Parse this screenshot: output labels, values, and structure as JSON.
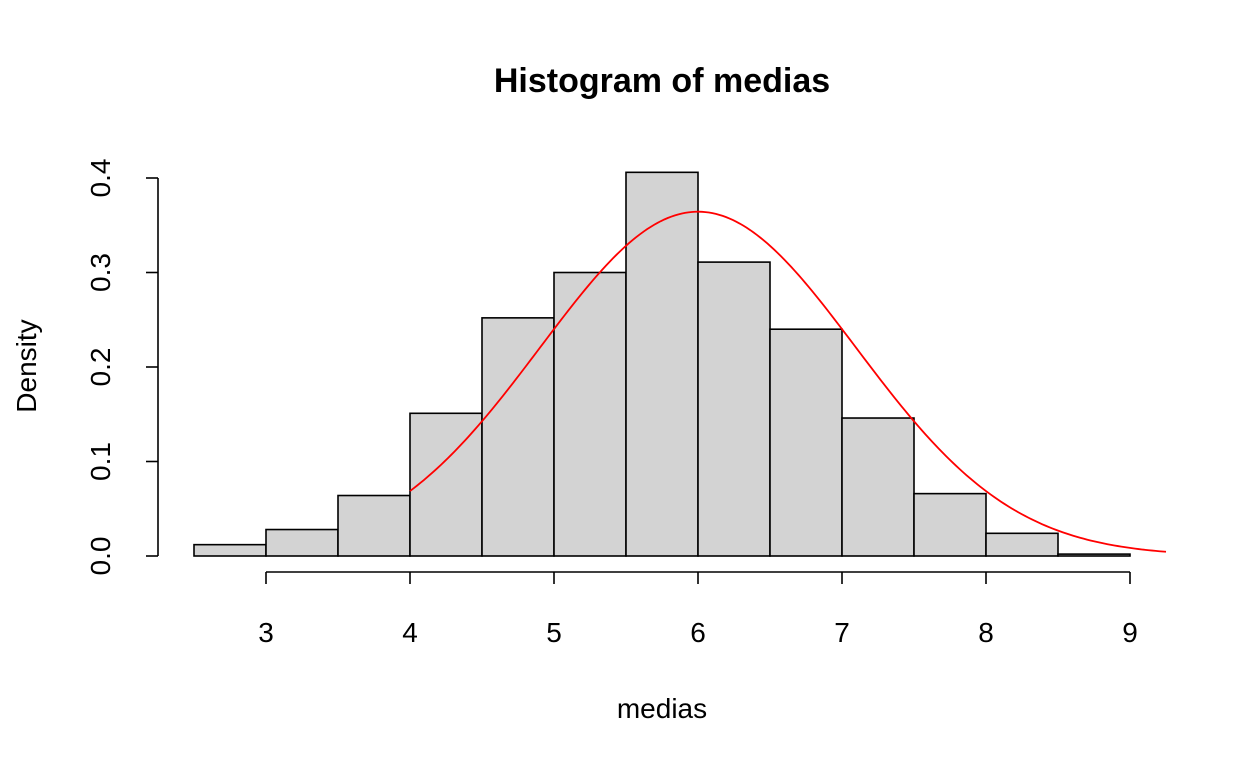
{
  "chart_data": {
    "type": "bar",
    "title": "Histogram of medias",
    "xlabel": "medias",
    "ylabel": "Density",
    "xlim": [
      2.5,
      9.25
    ],
    "ylim": [
      0,
      0.4
    ],
    "x_ticks": [
      "3",
      "4",
      "5",
      "6",
      "7",
      "8",
      "9"
    ],
    "y_ticks": [
      "0.0",
      "0.1",
      "0.2",
      "0.3",
      "0.4"
    ],
    "bins": [
      {
        "from": 2.5,
        "to": 3.0,
        "density": 0.012
      },
      {
        "from": 3.0,
        "to": 3.5,
        "density": 0.028
      },
      {
        "from": 3.5,
        "to": 4.0,
        "density": 0.064
      },
      {
        "from": 4.0,
        "to": 4.5,
        "density": 0.151
      },
      {
        "from": 4.5,
        "to": 5.0,
        "density": 0.252
      },
      {
        "from": 5.0,
        "to": 5.5,
        "density": 0.3
      },
      {
        "from": 5.5,
        "to": 6.0,
        "density": 0.406
      },
      {
        "from": 6.0,
        "to": 6.5,
        "density": 0.311
      },
      {
        "from": 6.5,
        "to": 7.0,
        "density": 0.24
      },
      {
        "from": 7.0,
        "to": 7.5,
        "density": 0.146
      },
      {
        "from": 7.5,
        "to": 8.0,
        "density": 0.066
      },
      {
        "from": 8.0,
        "to": 8.5,
        "density": 0.024
      },
      {
        "from": 8.5,
        "to": 9.0,
        "density": 0.002
      }
    ],
    "curve": {
      "type": "normal-density",
      "mean": 6.0,
      "sd": 1.095,
      "from": 4.0,
      "to": 9.25,
      "color": "#ff0000"
    },
    "bar_fill": "#d3d3d3",
    "bar_stroke": "#000000",
    "grid": false
  }
}
